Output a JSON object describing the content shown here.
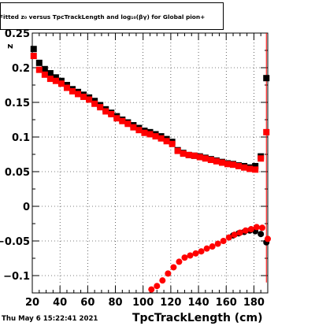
{
  "title": "Fitted  z₀ versus TpcTrackLength and log₁₀(βγ) for Global pion+",
  "timestamp": "Thu May  6 15:22:41 2021",
  "chart_data": {
    "type": "scatter",
    "title": "Fitted  z₀ versus TpcTrackLength and log₁₀(βγ) for Global pion+",
    "xlabel": "TpcTrackLength (cm)",
    "ylabel": "z",
    "xlim": [
      20,
      190
    ],
    "ylim": [
      -0.125,
      0.25
    ],
    "grid": true,
    "xticks": [
      20,
      40,
      60,
      80,
      100,
      120,
      140,
      160,
      180
    ],
    "yticks": [
      -0.1,
      -0.05,
      0,
      0.05,
      0.1,
      0.15,
      0.2
    ],
    "ytick_labels": [
      "−0.1",
      "−0.05",
      "0",
      "0.05",
      "0.1",
      "0.15",
      "0.2"
    ],
    "colors": {
      "black_series": "#000000",
      "red_series": "#ff0000",
      "frame": "#000000",
      "grid": "#000000"
    },
    "series": [
      {
        "marker": "square",
        "color": "#000000",
        "x": [
          21,
          25,
          29,
          33,
          37,
          41,
          45,
          49,
          53,
          57,
          61,
          65,
          69,
          73,
          77,
          81,
          85,
          89,
          93,
          97,
          101,
          105,
          109,
          113,
          117,
          121,
          125,
          129,
          133,
          137,
          141,
          145,
          149,
          153,
          157,
          161,
          165,
          169,
          173,
          177,
          181,
          185,
          189
        ],
        "y": [
          0.227,
          0.207,
          0.198,
          0.192,
          0.186,
          0.181,
          0.175,
          0.169,
          0.165,
          0.161,
          0.157,
          0.152,
          0.146,
          0.14,
          0.135,
          0.13,
          0.125,
          0.121,
          0.117,
          0.113,
          0.109,
          0.107,
          0.104,
          0.101,
          0.097,
          0.093,
          0.081,
          0.077,
          0.074,
          0.073,
          0.072,
          0.07,
          0.068,
          0.066,
          0.064,
          0.062,
          0.061,
          0.059,
          0.058,
          0.056,
          0.058,
          0.072,
          0.185
        ]
      },
      {
        "marker": "circle",
        "color": "#000000",
        "x": [
          165,
          169,
          173,
          177,
          181,
          185,
          189
        ],
        "y": [
          -0.042,
          -0.039,
          -0.037,
          -0.035,
          -0.036,
          -0.04,
          -0.052
        ]
      },
      {
        "marker": "square",
        "color": "#ff0000",
        "x": [
          21,
          25,
          29,
          33,
          37,
          41,
          45,
          49,
          53,
          57,
          61,
          65,
          69,
          73,
          77,
          81,
          85,
          89,
          93,
          97,
          101,
          105,
          109,
          113,
          117,
          121,
          125,
          129,
          133,
          137,
          141,
          145,
          149,
          153,
          157,
          161,
          165,
          169,
          173,
          177,
          181,
          185,
          189
        ],
        "y": [
          0.217,
          0.197,
          0.19,
          0.184,
          0.181,
          0.177,
          0.171,
          0.166,
          0.162,
          0.158,
          0.154,
          0.148,
          0.143,
          0.137,
          0.133,
          0.127,
          0.123,
          0.119,
          0.114,
          0.11,
          0.106,
          0.104,
          0.101,
          0.098,
          0.094,
          0.09,
          0.08,
          0.076,
          0.074,
          0.073,
          0.071,
          0.069,
          0.067,
          0.065,
          0.063,
          0.061,
          0.06,
          0.058,
          0.056,
          0.054,
          0.053,
          0.069,
          0.107
        ]
      },
      {
        "marker": "circle",
        "color": "#ff0000",
        "x": [
          106,
          110,
          114,
          118,
          122,
          126,
          130,
          134,
          138,
          142,
          146,
          150,
          154,
          158,
          162,
          166,
          170,
          174,
          178,
          182,
          186,
          190
        ],
        "y": [
          -0.12,
          -0.115,
          -0.107,
          -0.097,
          -0.088,
          -0.08,
          -0.074,
          -0.071,
          -0.068,
          -0.065,
          -0.061,
          -0.058,
          -0.054,
          -0.05,
          -0.045,
          -0.041,
          -0.038,
          -0.035,
          -0.033,
          -0.03,
          -0.031,
          -0.047
        ]
      }
    ]
  }
}
